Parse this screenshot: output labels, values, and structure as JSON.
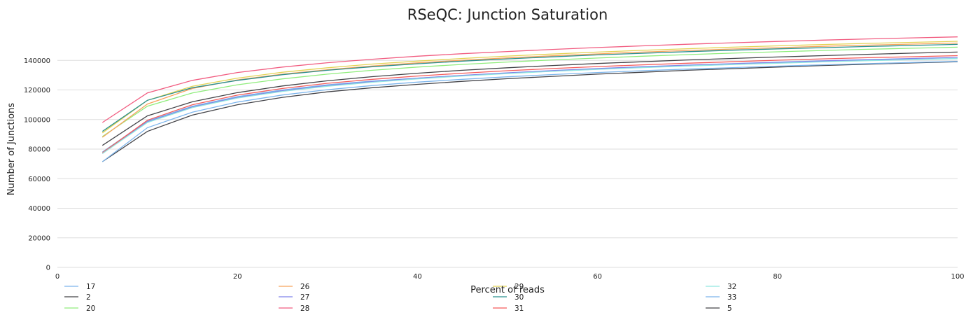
{
  "chart_data": {
    "type": "line",
    "title": "RSeQC: Junction Saturation",
    "xlabel": "Percent of reads",
    "ylabel": "Number of Junctions",
    "xlim": [
      0,
      100
    ],
    "ylim": [
      0,
      160000
    ],
    "x_ticks": [
      0,
      20,
      40,
      60,
      80,
      100
    ],
    "y_ticks": [
      0,
      20000,
      40000,
      60000,
      80000,
      100000,
      120000,
      140000
    ],
    "grid": "horizontal",
    "legend_position": "bottom",
    "x": [
      5,
      10,
      15,
      20,
      25,
      30,
      35,
      40,
      45,
      50,
      55,
      60,
      65,
      70,
      75,
      80,
      85,
      90,
      95,
      100
    ],
    "series": [
      {
        "name": "17",
        "color": "#7cb5ec",
        "values": [
          78000,
          99000,
          109000,
          115500,
          120000,
          123500,
          126000,
          128000,
          129800,
          131300,
          132700,
          134000,
          135200,
          136300,
          137300,
          138300,
          139200,
          140000,
          140700,
          141300
        ]
      },
      {
        "name": "2",
        "color": "#434348",
        "values": [
          71500,
          92000,
          103000,
          110000,
          115000,
          118700,
          121500,
          123800,
          125800,
          127600,
          129200,
          130700,
          132000,
          133300,
          134400,
          135500,
          136500,
          137400,
          138300,
          139100
        ]
      },
      {
        "name": "20",
        "color": "#90ed7d",
        "values": [
          88500,
          109000,
          118000,
          123500,
          127500,
          130700,
          133300,
          135500,
          137300,
          138900,
          140300,
          141600,
          142800,
          143900,
          144900,
          145800,
          146700,
          147500,
          148200,
          148900
        ]
      },
      {
        "name": "26",
        "color": "#f7a35c",
        "values": [
          88000,
          110500,
          121000,
          126800,
          130700,
          133700,
          136200,
          138300,
          140100,
          141700,
          143100,
          144400,
          145600,
          146700,
          147700,
          148600,
          149500,
          150300,
          151000,
          151700
        ]
      },
      {
        "name": "27",
        "color": "#8085e9",
        "values": [
          77000,
          98500,
          108500,
          115000,
          119500,
          123000,
          125700,
          128000,
          129900,
          131600,
          133100,
          134500,
          135700,
          136800,
          137800,
          138800,
          139700,
          140500,
          141300,
          142000
        ]
      },
      {
        "name": "28",
        "color": "#f15c80",
        "values": [
          98000,
          118000,
          126500,
          131800,
          135500,
          138400,
          140800,
          142800,
          144500,
          146000,
          147400,
          148700,
          149800,
          150900,
          151900,
          152800,
          153700,
          154500,
          155200,
          155900
        ]
      },
      {
        "name": "29",
        "color": "#e4d354",
        "values": [
          91000,
          113000,
          122500,
          128000,
          132000,
          135000,
          137500,
          139500,
          141300,
          142900,
          144300,
          145600,
          146800,
          147900,
          148900,
          149800,
          150700,
          151500,
          152200,
          152900
        ]
      },
      {
        "name": "30",
        "color": "#2b908f",
        "values": [
          92000,
          113000,
          121500,
          126500,
          130300,
          133300,
          135700,
          137700,
          139500,
          141000,
          142400,
          143700,
          144800,
          145900,
          146900,
          147800,
          148600,
          149400,
          150100,
          150800
        ]
      },
      {
        "name": "31",
        "color": "#f45b5b",
        "values": [
          77500,
          99500,
          110000,
          116500,
          121000,
          124500,
          127200,
          129400,
          131300,
          133000,
          134500,
          135800,
          137000,
          138100,
          139100,
          140100,
          141000,
          141800,
          142500,
          143200
        ]
      },
      {
        "name": "32",
        "color": "#91e8e1",
        "values": [
          77000,
          98000,
          108000,
          114500,
          119000,
          122500,
          125200,
          127500,
          129400,
          131100,
          132600,
          133900,
          135100,
          136200,
          137200,
          138100,
          139000,
          139800,
          140500,
          141200
        ]
      },
      {
        "name": "33",
        "color": "#7cb5ec",
        "values": [
          71500,
          94500,
          105000,
          111800,
          116600,
          120200,
          123000,
          125300,
          127200,
          128900,
          130400,
          131800,
          133000,
          134100,
          135100,
          136100,
          137000,
          137800,
          138600,
          139300
        ]
      },
      {
        "name": "5",
        "color": "#434348",
        "values": [
          82500,
          102500,
          112000,
          118200,
          122700,
          126200,
          129000,
          131300,
          133300,
          135000,
          136500,
          137900,
          139100,
          140300,
          141300,
          142300,
          143200,
          144100,
          144900,
          145600
        ]
      }
    ]
  }
}
